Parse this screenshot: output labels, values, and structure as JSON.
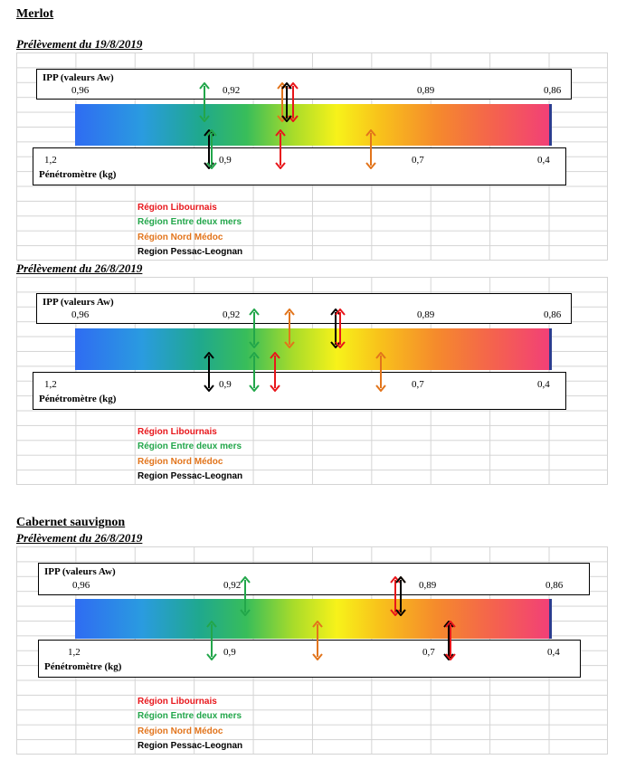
{
  "title_merlot": "Merlot",
  "title_cabernet": "Cabernet sauvignon",
  "ipp_label": "IPP (valeurs Aw)",
  "pen_label": "Pénétromètre (kg)",
  "ipp_ticks": [
    "0,96",
    "0,92",
    "0,89",
    "0,86"
  ],
  "pen_ticks": [
    "1,2",
    "0,9",
    "0,7",
    "0,4"
  ],
  "legend": [
    {
      "label": "Région Libournais",
      "color": "#e8161b"
    },
    {
      "label": "Région Entre deux mers",
      "color": "#22a64a"
    },
    {
      "label": "Région Nord Médoc",
      "color": "#e2741b"
    },
    {
      "label": "Region Pessac-Leognan",
      "color": "#000000"
    }
  ],
  "panels": [
    {
      "subtitle": "Prélèvement du 19/8/2019",
      "ipp_arrows": [
        {
          "region": "Région Entre deux mers",
          "value": 0.922
        },
        {
          "region": "Région Nord Médoc",
          "value": 0.91
        },
        {
          "region": "Région Libournais",
          "value": 0.9085
        },
        {
          "region": "Region Pessac-Leognan",
          "value": 0.9093
        }
      ],
      "pen_arrows": [
        {
          "region": "Region Pessac-Leognan",
          "value": 0.905
        },
        {
          "region": "Région Entre deux mers",
          "value": 0.9
        },
        {
          "region": "Région Libournais",
          "value": 0.835
        },
        {
          "region": "Région Nord Médoc",
          "value": 0.75
        }
      ]
    },
    {
      "subtitle": "Prélèvement du 26/8/2019",
      "ipp_arrows": [
        {
          "region": "Région Entre deux mers",
          "value": 0.914
        },
        {
          "region": "Région Nord Médoc",
          "value": 0.909
        },
        {
          "region": "Region Pessac-Leognan",
          "value": 0.9025
        },
        {
          "region": "Région Libournais",
          "value": 0.9018
        }
      ],
      "pen_arrows": [
        {
          "region": "Region Pessac-Leognan",
          "value": 0.905
        },
        {
          "region": "Région Entre deux mers",
          "value": 0.86
        },
        {
          "region": "Région Libournais",
          "value": 0.84
        },
        {
          "region": "Région Nord Médoc",
          "value": 0.74
        }
      ]
    },
    {
      "subtitle": "Prélèvement du 26/8/2019",
      "ipp_arrows": [
        {
          "region": "Région Entre deux mers",
          "value": 0.9152
        },
        {
          "region": "Région Libournais",
          "value": 0.894
        },
        {
          "region": "Région Nord Médoc",
          "value": 0.8932
        },
        {
          "region": "Region Pessac-Leognan",
          "value": 0.8932
        }
      ],
      "pen_arrows": [
        {
          "region": "Région Entre deux mers",
          "value": 0.9
        },
        {
          "region": "Région Nord Médoc",
          "value": 0.8
        },
        {
          "region": "Region Pessac-Leognan",
          "value": 0.64
        },
        {
          "region": "Région Libournais",
          "value": 0.635
        }
      ]
    }
  ]
}
